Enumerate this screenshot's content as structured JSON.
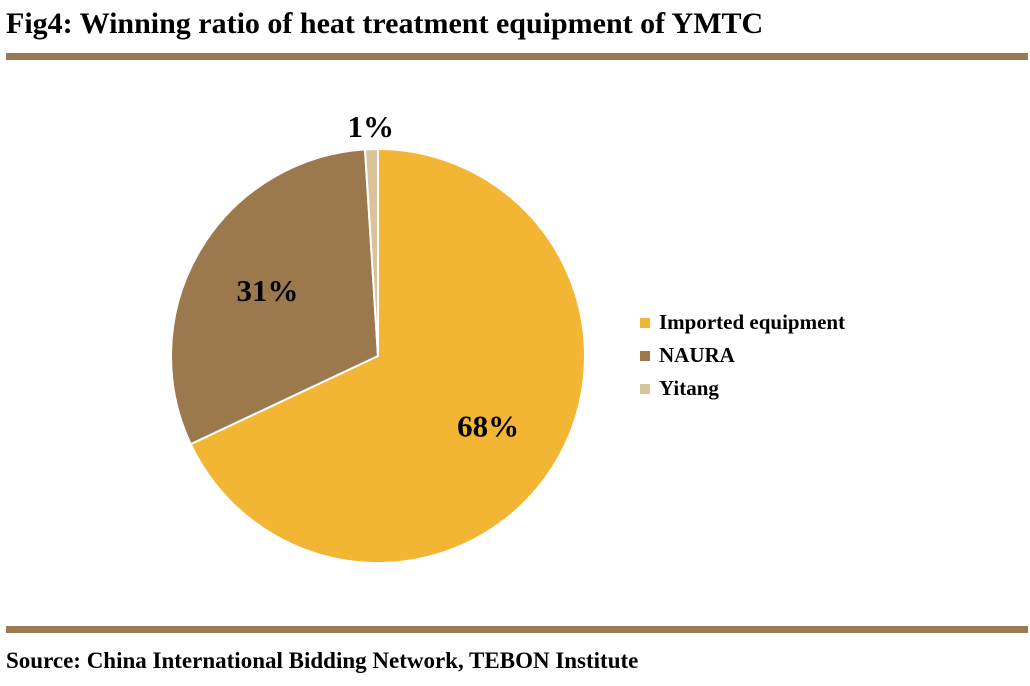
{
  "title": "Fig4: Winning ratio of heat treatment equipment of YMTC",
  "source": "Source: China International Bidding Network, TEBON Institute",
  "chart_data": {
    "type": "pie",
    "title": "",
    "categories": [
      "Imported equipment",
      "NAURA",
      "Yitang"
    ],
    "values": [
      68,
      31,
      1
    ],
    "labels": [
      "68%",
      "31%",
      "1%"
    ],
    "colors": [
      "#f2b634",
      "#9c784d",
      "#d9c39b"
    ],
    "slice_border_color": "#ffffff",
    "start_angle_deg": 0,
    "direction": "clockwise",
    "legend": {
      "position": "right",
      "entries": [
        "Imported equipment",
        "NAURA",
        "Yitang"
      ]
    }
  }
}
